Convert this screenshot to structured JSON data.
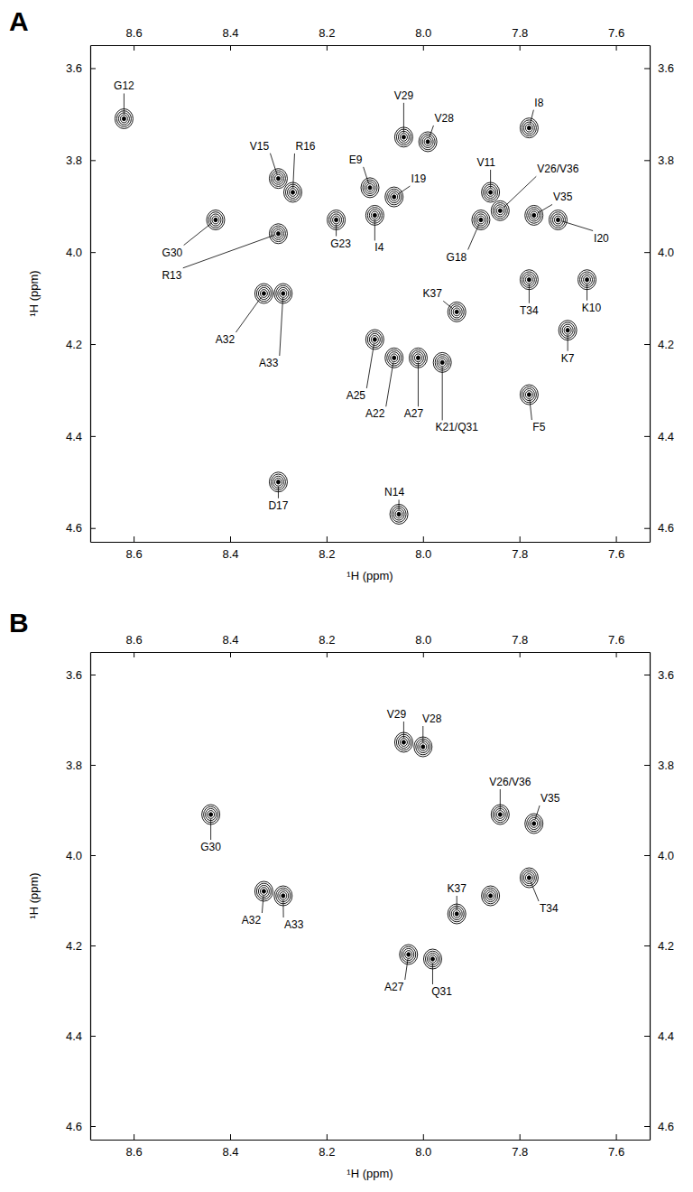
{
  "chart_data": [
    {
      "type": "contour",
      "title": "A",
      "x_label": "¹H (ppm)",
      "y_label": "¹H (ppm)",
      "color": "#000000",
      "xlim": [
        8.69,
        7.53
      ],
      "ylim": [
        3.55,
        4.63
      ],
      "xticks": [
        8.6,
        8.4,
        8.2,
        {
          "value": 8.0,
          "label": "8.0"
        },
        7.8,
        7.6
      ],
      "yticks": [
        3.6,
        3.8,
        {
          "value": 4.0,
          "label": "4.0"
        },
        4.2,
        4.4,
        4.6
      ],
      "labels": [
        "G12",
        "V15",
        "R16",
        "E9",
        "I19",
        "V29",
        "V28",
        "I8",
        "V11",
        "V26/V36",
        "V35",
        "I20",
        "G18",
        "I4",
        "G23",
        "G30",
        "R13",
        "A32",
        "A33",
        "K37",
        "T34",
        "K10",
        "K7",
        "A25",
        "A22",
        "A27",
        "K21/Q31",
        "F5",
        "D17",
        "N14"
      ],
      "x": [
        8.62,
        8.3,
        8.27,
        8.11,
        8.06,
        8.04,
        7.99,
        7.78,
        7.86,
        7.84,
        7.77,
        7.72,
        7.88,
        8.1,
        8.18,
        8.43,
        8.3,
        8.33,
        8.29,
        7.93,
        7.78,
        7.66,
        7.7,
        8.1,
        8.06,
        8.01,
        7.96,
        7.78,
        8.3,
        8.05
      ],
      "values": [
        3.71,
        3.84,
        3.87,
        3.86,
        3.88,
        3.75,
        3.76,
        3.73,
        3.87,
        3.91,
        3.92,
        3.93,
        3.93,
        3.92,
        3.93,
        3.93,
        3.96,
        4.09,
        4.09,
        4.13,
        4.06,
        4.06,
        4.17,
        4.19,
        4.23,
        4.23,
        4.24,
        4.31,
        4.5,
        4.57
      ]
    },
    {
      "type": "contour",
      "title": "B",
      "x_label": "¹H (ppm)",
      "y_label": "¹H (ppm)",
      "color": "#000000",
      "xlim": [
        8.69,
        7.53
      ],
      "ylim": [
        3.55,
        4.63
      ],
      "xticks": [
        8.6,
        8.4,
        8.2,
        {
          "value": 8.0,
          "label": "8.0"
        },
        7.8,
        7.6
      ],
      "yticks": [
        3.6,
        3.8,
        {
          "value": 4.0,
          "label": "4.0"
        },
        4.2,
        4.4,
        4.6
      ],
      "labels": [
        "V29",
        "V28",
        "V26/V36",
        "V35",
        "G30",
        "A32",
        "A33",
        "T34",
        "K37",
        "A27",
        "Q31",
        null
      ],
      "x": [
        8.04,
        8.0,
        7.84,
        7.77,
        8.44,
        8.33,
        8.29,
        7.78,
        7.93,
        8.03,
        7.98,
        7.86
      ],
      "values": [
        3.75,
        3.76,
        3.91,
        3.93,
        3.91,
        4.08,
        4.09,
        4.05,
        4.13,
        4.22,
        4.23,
        4.09
      ]
    }
  ]
}
